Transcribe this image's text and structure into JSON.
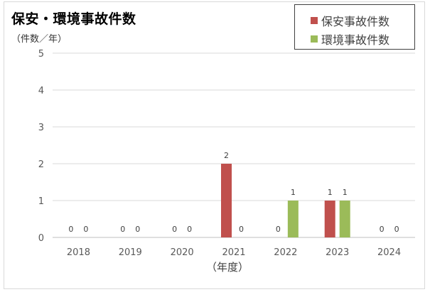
{
  "chart_data": {
    "type": "bar",
    "title": "保安・環境事故件数",
    "ylabel": "（件数／年）",
    "xlabel": "（年度）",
    "categories": [
      "2018",
      "2019",
      "2020",
      "2021",
      "2022",
      "2023",
      "2024"
    ],
    "series": [
      {
        "name": "保安事故件数",
        "color": "#c0504d",
        "values": [
          0,
          0,
          0,
          2,
          0,
          1,
          0
        ]
      },
      {
        "name": "環境事故件数",
        "color": "#9bbb59",
        "values": [
          0,
          0,
          0,
          0,
          1,
          1,
          0
        ]
      }
    ],
    "ylim": [
      0,
      5
    ],
    "yticks": [
      0,
      1,
      2,
      3,
      4,
      5
    ],
    "grid": true,
    "legend": "top-right",
    "data_labels": true
  }
}
